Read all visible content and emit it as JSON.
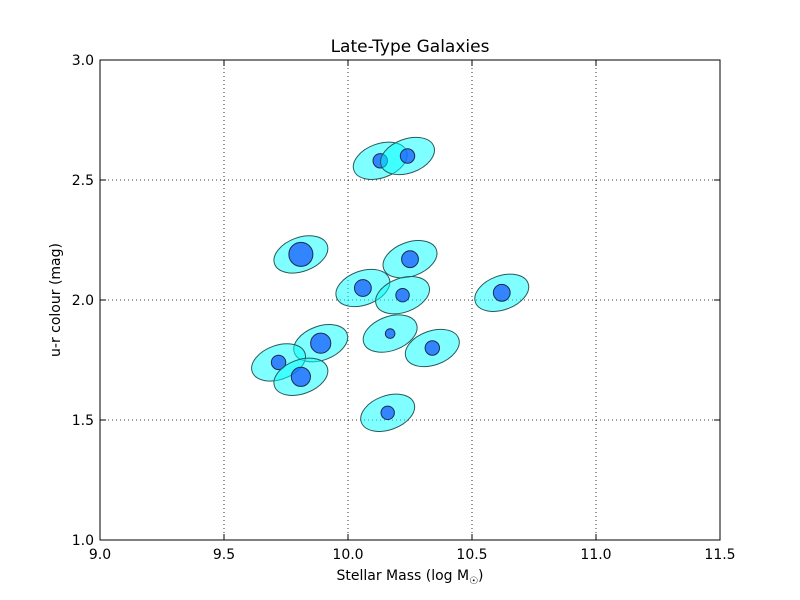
{
  "chart_data": {
    "type": "scatter",
    "title": "Late-Type Galaxies",
    "xlabel_main": "Stellar Mass (log M",
    "xlabel_sub": "☉",
    "xlabel_close": ")",
    "ylabel": "u-r colour (mag)",
    "xlim": [
      9.0,
      11.5
    ],
    "ylim": [
      1.0,
      3.0
    ],
    "xticks": [
      "9.0",
      "9.5",
      "10.0",
      "10.5",
      "11.0",
      "11.5"
    ],
    "yticks": [
      "1.0",
      "1.5",
      "2.0",
      "2.5",
      "3.0"
    ],
    "grid": true,
    "outer_color": "#00ffff",
    "inner_color": "#1a5cff",
    "points": [
      {
        "x": 10.13,
        "y": 2.58,
        "r": 0.03
      },
      {
        "x": 10.24,
        "y": 2.6,
        "r": 0.03
      },
      {
        "x": 9.81,
        "y": 2.19,
        "r": 0.05
      },
      {
        "x": 10.25,
        "y": 2.17,
        "r": 0.035
      },
      {
        "x": 10.06,
        "y": 2.05,
        "r": 0.035
      },
      {
        "x": 10.22,
        "y": 2.02,
        "r": 0.028
      },
      {
        "x": 10.62,
        "y": 2.03,
        "r": 0.035
      },
      {
        "x": 9.89,
        "y": 1.82,
        "r": 0.042
      },
      {
        "x": 10.17,
        "y": 1.86,
        "r": 0.02
      },
      {
        "x": 10.34,
        "y": 1.8,
        "r": 0.03
      },
      {
        "x": 9.72,
        "y": 1.74,
        "r": 0.03
      },
      {
        "x": 9.81,
        "y": 1.68,
        "r": 0.04
      },
      {
        "x": 10.16,
        "y": 1.53,
        "r": 0.028
      }
    ]
  }
}
